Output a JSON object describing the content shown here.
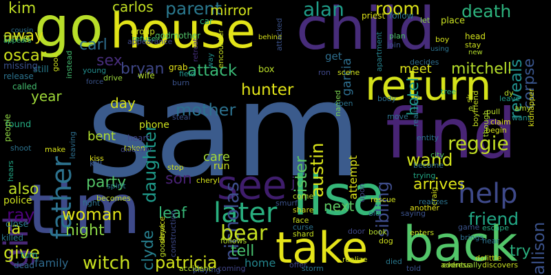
{
  "words": [
    {
      "text": "sam",
      "color": "#3b5b8c"
    },
    {
      "text": "child",
      "color": "#472c7a"
    },
    {
      "text": "tim",
      "color": "#3e4a89"
    },
    {
      "text": "house",
      "color": "#e2e418"
    },
    {
      "text": "go",
      "color": "#b8de29"
    },
    {
      "text": "find",
      "color": "#482475"
    },
    {
      "text": "return",
      "color": "#d5e21a"
    },
    {
      "text": "lisa",
      "color": "#35b779"
    },
    {
      "text": "back",
      "color": "#52c569"
    },
    {
      "text": "take",
      "color": "#e5e419"
    },
    {
      "text": "see",
      "color": "#3f1d6c"
    },
    {
      "text": "later",
      "color": "#29af7f"
    },
    {
      "text": "girl",
      "color": "#482878"
    },
    {
      "text": "father",
      "color": "#2c728e"
    },
    {
      "text": "help",
      "color": "#3e4989"
    },
    {
      "text": "witch",
      "color": "#c8e020"
    },
    {
      "text": "parent",
      "color": "#2a788e"
    },
    {
      "text": "alan",
      "color": "#1f9e89"
    },
    {
      "text": "mirror",
      "color": "#d2e21b"
    },
    {
      "text": "room",
      "color": "#dce319"
    },
    {
      "text": "death",
      "color": "#2db27d"
    },
    {
      "text": "attack",
      "color": "#3aba76"
    },
    {
      "text": "hunter",
      "color": "#e1e418"
    },
    {
      "text": "bryan",
      "color": "#3f4788"
    },
    {
      "text": "sex",
      "color": "#472d7b"
    },
    {
      "text": "carl",
      "color": "#2e6e8e"
    },
    {
      "text": "reveals",
      "color": "#21908d"
    },
    {
      "text": "corpse",
      "color": "#39558c"
    },
    {
      "text": "hotel",
      "color": "#1f9a8a"
    },
    {
      "text": "mitchell",
      "color": "#b5de2b"
    },
    {
      "text": "meet",
      "color": "#dde318"
    },
    {
      "text": "wand",
      "color": "#d0e11c"
    },
    {
      "text": "reggie",
      "color": "#c2df23"
    },
    {
      "text": "daughter",
      "color": "#1f9a8a"
    },
    {
      "text": "mother",
      "color": "#2c718e"
    },
    {
      "text": "nicholas",
      "color": "#3d4d8a"
    },
    {
      "text": "austin",
      "color": "#d8e219"
    },
    {
      "text": "sister",
      "color": "#5cc863"
    },
    {
      "text": "sibling",
      "color": "#3e4c8a"
    },
    {
      "text": "attempt",
      "color": "#dde318"
    },
    {
      "text": "oscar",
      "color": "#cde11d"
    },
    {
      "text": "away",
      "color": "#e5e419"
    },
    {
      "text": "time",
      "color": "#a8db34"
    },
    {
      "text": "kim",
      "color": "#c0df25"
    },
    {
      "text": "carlos",
      "color": "#c2df23"
    },
    {
      "text": "year",
      "color": "#a0da39"
    },
    {
      "text": "day",
      "color": "#d8e219"
    },
    {
      "text": "bent",
      "color": "#b0dd2f"
    },
    {
      "text": "son",
      "color": "#482173"
    },
    {
      "text": "party",
      "color": "#54c568"
    },
    {
      "text": "woman",
      "color": "#e2e418"
    },
    {
      "text": "night",
      "color": "#8bd646"
    },
    {
      "text": "also",
      "color": "#bddf26"
    },
    {
      "text": "ray",
      "color": "#4e027c"
    },
    {
      "text": "la",
      "color": "#d0e11c"
    },
    {
      "text": "give",
      "color": "#cae11f"
    },
    {
      "text": "clyde",
      "color": "#277f8e"
    },
    {
      "text": "leaf",
      "color": "#37b878"
    },
    {
      "text": "bear",
      "color": "#c5e021"
    },
    {
      "text": "tell",
      "color": "#48c16e"
    },
    {
      "text": "patricia",
      "color": "#d2e21b"
    },
    {
      "text": "next",
      "color": "#5ec962"
    },
    {
      "text": "arrives",
      "color": "#dde318"
    },
    {
      "text": "friend",
      "color": "#22a785"
    },
    {
      "text": "allison",
      "color": "#3b528b"
    },
    {
      "text": "try",
      "color": "#2ab07f"
    },
    {
      "text": "j",
      "color": "#482878"
    },
    {
      "text": "family",
      "color": "#2f6b8e"
    },
    {
      "text": "home",
      "color": "#24868e"
    },
    {
      "text": "care",
      "color": "#a5db36"
    },
    {
      "text": "run",
      "color": "#c8e020"
    },
    {
      "text": "garcia",
      "color": "#2e6e8e"
    },
    {
      "text": "get",
      "color": "#2e6e8e"
    },
    {
      "text": "kill",
      "color": "#38588c"
    },
    {
      "text": "phone",
      "color": "#cde11d"
    },
    {
      "text": "heart",
      "color": "#414487"
    },
    {
      "text": "police",
      "color": "#cde11d"
    },
    {
      "text": "close",
      "color": "#287c8e"
    },
    {
      "text": "killed",
      "color": "#2a788e"
    },
    {
      "text": "dead",
      "color": "#31688e"
    },
    {
      "text": "still",
      "color": "#287c8e"
    },
    {
      "text": "turn",
      "color": "#1fa088"
    },
    {
      "text": "found",
      "color": "#25ac82"
    },
    {
      "text": "called",
      "color": "#44bf70"
    },
    {
      "text": "missing",
      "color": "#3b528b"
    },
    {
      "text": "release",
      "color": "#2c738e"
    },
    {
      "text": "people",
      "color": "#8fd744"
    },
    {
      "text": "appears",
      "color": "#31b57b"
    },
    {
      "text": "cousin",
      "color": "#2d718e"
    },
    {
      "text": "group",
      "color": "#d0e11c"
    },
    {
      "text": "refuse",
      "color": "#38b977"
    },
    {
      "text": "godmother",
      "color": "#52c569"
    },
    {
      "text": "car",
      "color": "#2ab07f"
    },
    {
      "text": "field",
      "color": "#20928c"
    },
    {
      "text": "force",
      "color": "#3a538b"
    },
    {
      "text": "drive",
      "color": "#9dd93b"
    },
    {
      "text": "wife",
      "color": "#b5de2b"
    },
    {
      "text": "young",
      "color": "#228c8d"
    },
    {
      "text": "grab",
      "color": "#e5e419"
    },
    {
      "text": "box",
      "color": "#bade28"
    },
    {
      "text": "behind",
      "color": "#d8e219"
    },
    {
      "text": "retreat",
      "color": "#46307e"
    },
    {
      "text": "priest",
      "color": "#dde318"
    },
    {
      "text": "follow",
      "color": "#2a778e"
    },
    {
      "text": "plan",
      "color": "#4cc26c"
    },
    {
      "text": "join",
      "color": "#3b528b"
    },
    {
      "text": "let",
      "color": "#8fd744"
    },
    {
      "text": "place",
      "color": "#c8e020"
    },
    {
      "text": "head",
      "color": "#d2e21b"
    },
    {
      "text": "stay",
      "color": "#cde11d"
    },
    {
      "text": "new",
      "color": "#b5de2b"
    },
    {
      "text": "boy",
      "color": "#d5e21a"
    },
    {
      "text": "using",
      "color": "#2c728e"
    },
    {
      "text": "apartment",
      "color": "#26828e"
    },
    {
      "text": "scene",
      "color": "#d0e11c"
    },
    {
      "text": "tree",
      "color": "#25ab82"
    },
    {
      "text": "body",
      "color": "#2e6f8e"
    },
    {
      "text": "dy",
      "color": "#bade28"
    },
    {
      "text": "leave",
      "color": "#1f9a8a"
    },
    {
      "text": "amy",
      "color": "#bddf26"
    },
    {
      "text": "want",
      "color": "#21908d"
    },
    {
      "text": "kidnapper",
      "color": "#dce319"
    },
    {
      "text": "pull",
      "color": "#bade28"
    },
    {
      "text": "move",
      "color": "#2c738e"
    },
    {
      "text": "entity",
      "color": "#2c738e"
    },
    {
      "text": "claim",
      "color": "#e2e418"
    },
    {
      "text": "begin",
      "color": "#d5e21a"
    },
    {
      "text": "city",
      "color": "#52c569"
    },
    {
      "text": "become",
      "color": "#2e6f8e"
    },
    {
      "text": "trying",
      "color": "#22a785"
    },
    {
      "text": "boyfriend",
      "color": "#c8e020"
    },
    {
      "text": "though",
      "color": "#b0dd2f"
    },
    {
      "text": "named",
      "color": "#7ad151"
    },
    {
      "text": "realizing",
      "color": "#2c728e"
    },
    {
      "text": "steal",
      "color": "#3c4f8a"
    },
    {
      "text": "taken",
      "color": "#cde11d"
    },
    {
      "text": "leaving",
      "color": "#2e6e8e"
    },
    {
      "text": "make",
      "color": "#d8e219"
    },
    {
      "text": "discover",
      "color": "#3f4788"
    },
    {
      "text": "kiss",
      "color": "#e2e418"
    },
    {
      "text": "stop",
      "color": "#d2e21b"
    },
    {
      "text": "cheryl",
      "color": "#d5e21a"
    },
    {
      "text": "spirit",
      "color": "#29798e"
    },
    {
      "text": "becomes",
      "color": "#c0df25"
    },
    {
      "text": "fight",
      "color": "#2c738e"
    },
    {
      "text": "follows",
      "color": "#b5de2b"
    },
    {
      "text": "smurf",
      "color": "#3b528b"
    },
    {
      "text": "come",
      "color": "#bddf26"
    },
    {
      "text": "face",
      "color": "#cde11d"
    },
    {
      "text": "shard",
      "color": "#c8e020"
    },
    {
      "text": "share",
      "color": "#d5e21a"
    },
    {
      "text": "curse",
      "color": "#2c738e"
    },
    {
      "text": "door",
      "color": "#3f4788"
    },
    {
      "text": "dog",
      "color": "#d0e11c"
    },
    {
      "text": "book",
      "color": "#b5de2b"
    },
    {
      "text": "old",
      "color": "#2e6e8e"
    },
    {
      "text": "rescue",
      "color": "#d0e11c"
    },
    {
      "text": "another",
      "color": "#e2e418"
    },
    {
      "text": "enters",
      "color": "#c8e020"
    },
    {
      "text": "game",
      "color": "#3a538b"
    },
    {
      "text": "escape",
      "color": "#25ab82"
    },
    {
      "text": "brings",
      "color": "#2e6e8e"
    },
    {
      "text": "hear",
      "color": "#2c738e"
    },
    {
      "text": "dolittle",
      "color": "#d5e21a"
    },
    {
      "text": "discovers",
      "color": "#c8e020"
    },
    {
      "text": "address",
      "color": "#bddf26"
    },
    {
      "text": "told",
      "color": "#3b528b"
    },
    {
      "text": "died",
      "color": "#29798e"
    },
    {
      "text": "eventually",
      "color": "#a0da39"
    },
    {
      "text": "realize",
      "color": "#cde11d"
    },
    {
      "text": "storm",
      "color": "#2c738e"
    },
    {
      "text": "offer",
      "color": "#3f4788"
    },
    {
      "text": "coming",
      "color": "#414487"
    },
    {
      "text": "playing",
      "color": "#3b528b"
    },
    {
      "text": "accident",
      "color": "#b5de2b"
    },
    {
      "text": "goodbye",
      "color": "#c0df25"
    },
    {
      "text": "construction",
      "color": "#3e4a89"
    },
    {
      "text": "service",
      "color": "#d8e219"
    },
    {
      "text": "hears",
      "color": "#22a785"
    },
    {
      "text": "shoot",
      "color": "#2c738e"
    },
    {
      "text": "instead",
      "color": "#44bf70"
    },
    {
      "text": "good",
      "color": "#d0e11c"
    },
    {
      "text": "burn",
      "color": "#3b528b"
    },
    {
      "text": "way",
      "color": "#21908d"
    },
    {
      "text": "appearance",
      "color": "#3f4788"
    },
    {
      "text": "encounter",
      "color": "#c8e020"
    },
    {
      "text": "attacked",
      "color": "#3b528b"
    },
    {
      "text": "ron",
      "color": "#3f4788"
    },
    {
      "text": "el",
      "color": "#bade28"
    },
    {
      "text": "open",
      "color": "#2c738e"
    },
    {
      "text": "decides",
      "color": "#2e6e8e"
    },
    {
      "text": "upon",
      "color": "#3f4788"
    },
    {
      "text": "realizes",
      "color": "#2c738e"
    },
    {
      "text": "craig",
      "color": "#d5e21a"
    },
    {
      "text": "saying",
      "color": "#3b528b"
    },
    {
      "text": "sk",
      "color": "#c8e020"
    }
  ]
}
